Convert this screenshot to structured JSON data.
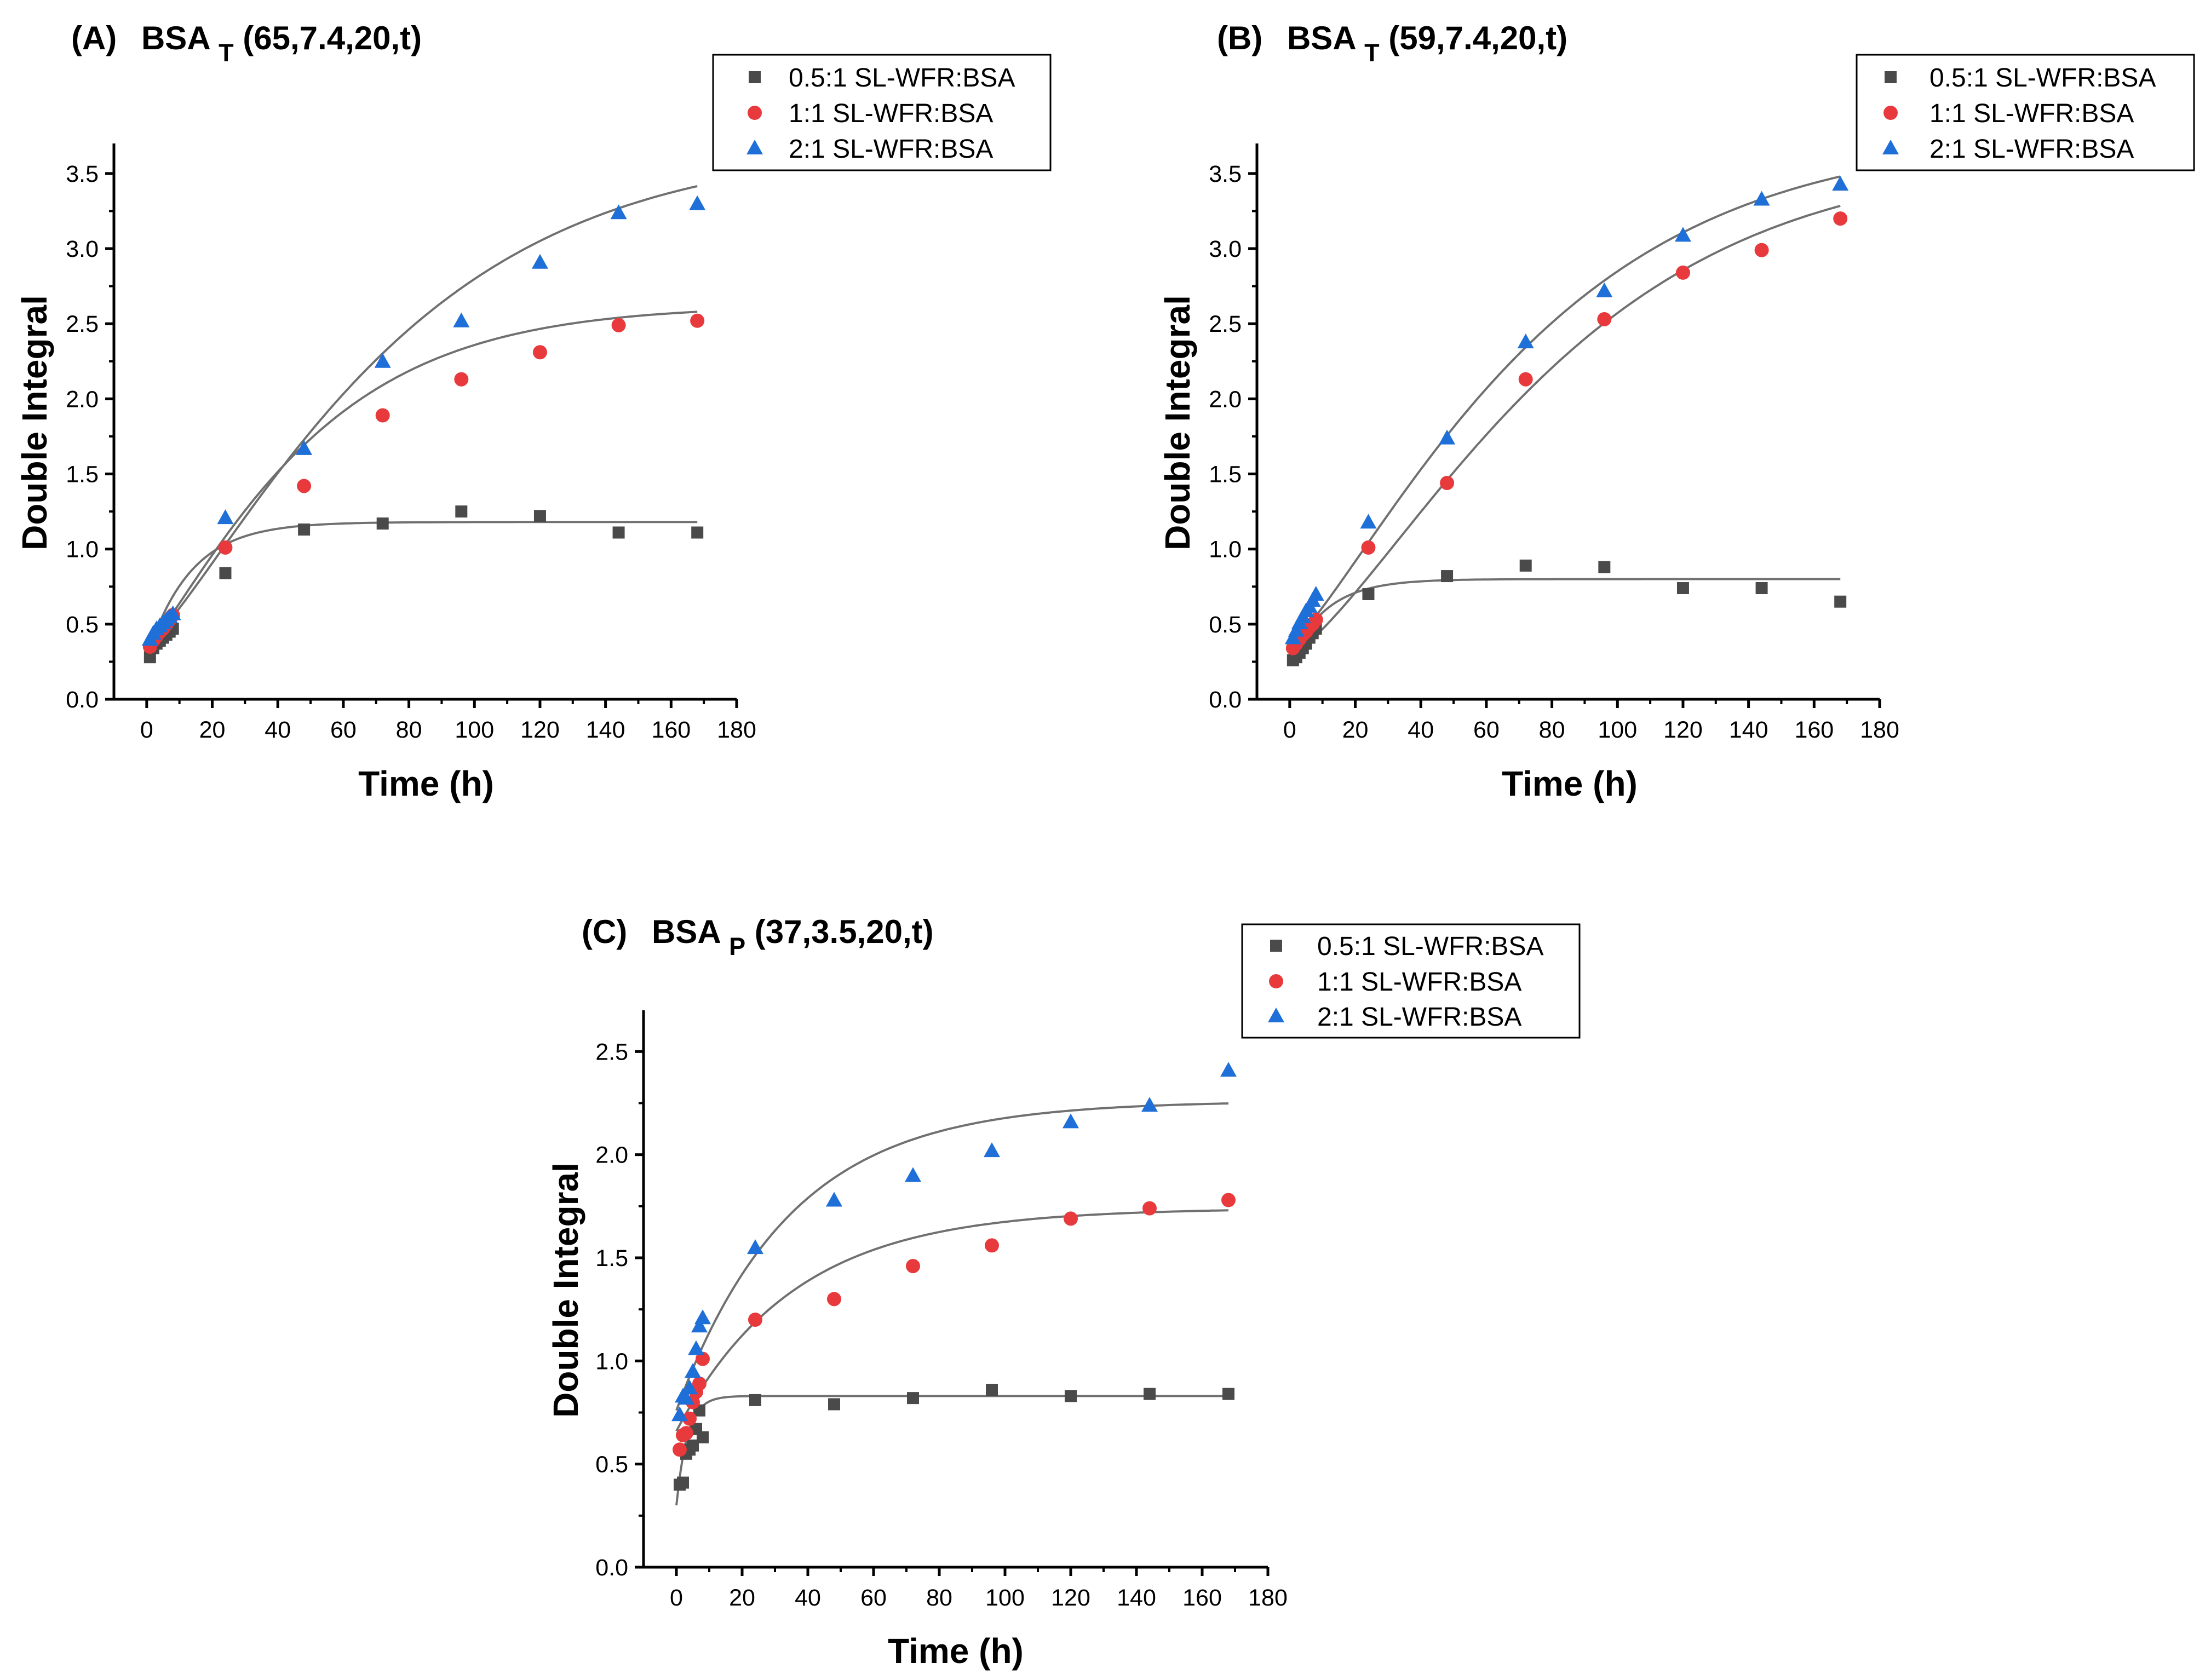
{
  "chart_data": [
    {
      "type": "scatter",
      "panel_label": "(A)",
      "title_main": "BSA",
      "title_sub": "T",
      "title_args": "(65,7.4,20,t)",
      "xlabel": "Time (h)",
      "ylabel": "Double Integral",
      "xlim": [
        -10,
        180
      ],
      "ylim": [
        0,
        3.7
      ],
      "xticks": [
        0,
        20,
        40,
        60,
        80,
        100,
        120,
        140,
        160,
        180
      ],
      "yticks": [
        0.0,
        0.5,
        1.0,
        1.5,
        2.0,
        2.5,
        3.0,
        3.5
      ],
      "xtick_labels": [
        "0",
        "20",
        "40",
        "60",
        "80",
        "100",
        "120",
        "140",
        "160",
        "180"
      ],
      "ytick_labels": [
        "0.0",
        "0.5",
        "1.0",
        "1.5",
        "2.0",
        "2.5",
        "3.0",
        "3.5"
      ],
      "legend_position": "top-right",
      "series": [
        {
          "name": "0.5:1 SL-WFR:BSA",
          "marker": "square",
          "color": "#4a4a4a",
          "x": [
            1,
            2,
            3,
            4,
            5,
            6,
            7,
            8,
            24,
            48,
            72,
            96,
            120,
            144,
            168
          ],
          "y": [
            0.28,
            0.34,
            0.37,
            0.39,
            0.41,
            0.43,
            0.45,
            0.47,
            0.84,
            1.13,
            1.17,
            1.25,
            1.22,
            1.11,
            1.11
          ],
          "fit": {
            "model": "exp",
            "a": 1.18,
            "b": 0.9,
            "k": 0.075,
            "x_end": 168
          }
        },
        {
          "name": "1:1 SL-WFR:BSA",
          "marker": "circle",
          "color": "#e8393c",
          "x": [
            1,
            2,
            3,
            4,
            5,
            6,
            7,
            8,
            24,
            48,
            72,
            96,
            120,
            144,
            168
          ],
          "y": [
            0.35,
            0.39,
            0.42,
            0.45,
            0.47,
            0.5,
            0.53,
            0.56,
            1.01,
            1.42,
            1.89,
            2.13,
            2.31,
            2.49,
            2.52
          ],
          "fit": {
            "model": "sigmoid",
            "Amax": 2.62,
            "y0": 0.35,
            "k": 0.019,
            "n": 1.2,
            "x_end": 168
          }
        },
        {
          "name": "2:1 SL-WFR:BSA",
          "marker": "triangle",
          "color": "#1f6fd8",
          "x": [
            1,
            2,
            3,
            4,
            5,
            6,
            7,
            8,
            24,
            48,
            72,
            96,
            120,
            144,
            168
          ],
          "y": [
            0.4,
            0.44,
            0.47,
            0.49,
            0.51,
            0.53,
            0.55,
            0.57,
            1.21,
            1.67,
            2.25,
            2.52,
            2.91,
            3.24,
            3.3
          ],
          "fit": {
            "model": "sigmoid",
            "Amax": 3.68,
            "y0": 0.37,
            "k": 0.0125,
            "n": 1.25,
            "x_end": 168
          }
        }
      ]
    },
    {
      "type": "scatter",
      "panel_label": "(B)",
      "title_main": "BSA",
      "title_sub": "T",
      "title_args": "(59,7.4,20,t)",
      "xlabel": "Time (h)",
      "ylabel": "Double Integral",
      "xlim": [
        -10,
        180
      ],
      "ylim": [
        0,
        3.7
      ],
      "xticks": [
        0,
        20,
        40,
        60,
        80,
        100,
        120,
        140,
        160,
        180
      ],
      "yticks": [
        0.0,
        0.5,
        1.0,
        1.5,
        2.0,
        2.5,
        3.0,
        3.5
      ],
      "xtick_labels": [
        "0",
        "20",
        "40",
        "60",
        "80",
        "100",
        "120",
        "140",
        "160",
        "180"
      ],
      "ytick_labels": [
        "0.0",
        "0.5",
        "1.0",
        "1.5",
        "2.0",
        "2.5",
        "3.0",
        "3.5"
      ],
      "legend_position": "top-right",
      "series": [
        {
          "name": "0.5:1 SL-WFR:BSA",
          "marker": "square",
          "color": "#4a4a4a",
          "x": [
            1,
            2,
            3,
            4,
            5,
            6,
            7,
            8,
            24,
            48,
            72,
            96,
            120,
            144,
            168
          ],
          "y": [
            0.26,
            0.28,
            0.31,
            0.34,
            0.37,
            0.41,
            0.44,
            0.47,
            0.7,
            0.82,
            0.89,
            0.88,
            0.74,
            0.74,
            0.65
          ],
          "fit": {
            "model": "exp",
            "a": 0.8,
            "b": 0.55,
            "k": 0.09,
            "x_end": 168
          }
        },
        {
          "name": "1:1 SL-WFR:BSA",
          "marker": "circle",
          "color": "#e8393c",
          "x": [
            1,
            2,
            3,
            4,
            5,
            6,
            7,
            8,
            24,
            48,
            72,
            96,
            120,
            144,
            168
          ],
          "y": [
            0.34,
            0.37,
            0.4,
            0.43,
            0.45,
            0.48,
            0.5,
            0.53,
            1.01,
            1.44,
            2.13,
            2.53,
            2.84,
            2.99,
            3.2
          ],
          "fit": {
            "model": "sigmoid",
            "Amax": 3.6,
            "y0": 0.3,
            "k": 0.0112,
            "n": 1.35,
            "x_end": 168
          }
        },
        {
          "name": "2:1 SL-WFR:BSA",
          "marker": "triangle",
          "color": "#1f6fd8",
          "x": [
            1,
            2,
            3,
            4,
            5,
            6,
            7,
            8,
            24,
            48,
            72,
            96,
            120,
            144,
            168
          ],
          "y": [
            0.41,
            0.46,
            0.51,
            0.55,
            0.59,
            0.62,
            0.66,
            0.7,
            1.18,
            1.74,
            2.38,
            2.72,
            3.09,
            3.33,
            3.43
          ],
          "fit": {
            "model": "sigmoid",
            "Amax": 3.75,
            "y0": 0.37,
            "k": 0.0125,
            "n": 1.25,
            "x_end": 168
          }
        }
      ]
    },
    {
      "type": "scatter",
      "panel_label": "(C)",
      "title_main": "BSA",
      "title_sub": "P",
      "title_args": "(37,3.5,20,t)",
      "xlabel": "Time (h)",
      "ylabel": "Double Integral",
      "xlim": [
        -10,
        180
      ],
      "ylim": [
        0,
        2.7
      ],
      "xticks": [
        0,
        20,
        40,
        60,
        80,
        100,
        120,
        140,
        160,
        180
      ],
      "yticks": [
        0.0,
        0.5,
        1.0,
        1.5,
        2.0,
        2.5
      ],
      "xtick_labels": [
        "0",
        "20",
        "40",
        "60",
        "80",
        "100",
        "120",
        "140",
        "160",
        "180"
      ],
      "ytick_labels": [
        "0.0",
        "0.5",
        "1.0",
        "1.5",
        "2.0",
        "2.5"
      ],
      "legend_position": "top-right",
      "series": [
        {
          "name": "0.5:1 SL-WFR:BSA",
          "marker": "square",
          "color": "#4a4a4a",
          "x": [
            1,
            2,
            3,
            4,
            5,
            6,
            7,
            8,
            24,
            48,
            72,
            96,
            120,
            144,
            168
          ],
          "y": [
            0.4,
            0.41,
            0.55,
            0.57,
            0.59,
            0.67,
            0.76,
            0.63,
            0.81,
            0.79,
            0.82,
            0.86,
            0.83,
            0.84,
            0.84
          ],
          "fit": {
            "model": "exp",
            "a": 0.83,
            "b": 0.53,
            "k": 0.3,
            "x_end": 168
          }
        },
        {
          "name": "1:1 SL-WFR:BSA",
          "marker": "circle",
          "color": "#e8393c",
          "x": [
            1,
            2,
            3,
            4,
            5,
            6,
            7,
            8,
            24,
            48,
            72,
            96,
            120,
            144,
            168
          ],
          "y": [
            0.57,
            0.64,
            0.65,
            0.72,
            0.8,
            0.85,
            0.89,
            1.01,
            1.2,
            1.3,
            1.46,
            1.56,
            1.69,
            1.74,
            1.78
          ],
          "fit": {
            "model": "exp",
            "a": 1.74,
            "b": 1.08,
            "k": 0.028,
            "x_end": 168
          }
        },
        {
          "name": "2:1 SL-WFR:BSA",
          "marker": "triangle",
          "color": "#1f6fd8",
          "x": [
            1,
            2,
            3,
            4,
            5,
            6,
            7,
            8,
            24,
            48,
            72,
            96,
            120,
            144,
            168
          ],
          "y": [
            0.74,
            0.83,
            0.82,
            0.87,
            0.95,
            1.06,
            1.17,
            1.21,
            1.55,
            1.78,
            1.9,
            2.02,
            2.16,
            2.24,
            2.41
          ],
          "fit": {
            "model": "exp",
            "a": 2.26,
            "b": 1.5,
            "k": 0.029,
            "x_end": 168
          }
        }
      ]
    }
  ]
}
